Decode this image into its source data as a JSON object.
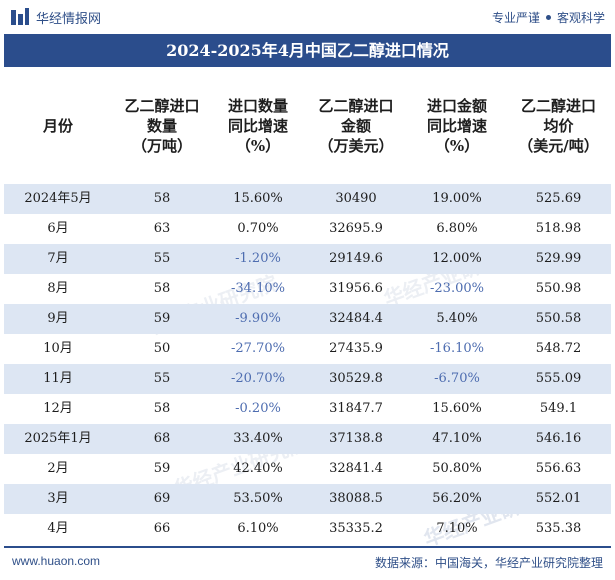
{
  "header": {
    "brand": "华经情报网",
    "slogan_left": "专业严谨",
    "slogan_right": "客观科学"
  },
  "title": "2024-2025年4月中国乙二醇进口情况",
  "columns": [
    "月份",
    "乙二醇进口\n数量\n（万吨）",
    "进口数量\n同比增速\n（%）",
    "乙二醇进口\n金额\n（万美元）",
    "进口金额\n同比增速\n（%）",
    "乙二醇进口\n均价\n（美元/吨）"
  ],
  "rows": [
    [
      "2024年5月",
      "58",
      "15.60%",
      "30490",
      "19.00%",
      "525.69"
    ],
    [
      "6月",
      "63",
      "0.70%",
      "32695.9",
      "6.80%",
      "518.98"
    ],
    [
      "7月",
      "55",
      "-1.20%",
      "29149.6",
      "12.00%",
      "529.99"
    ],
    [
      "8月",
      "58",
      "-34.10%",
      "31956.6",
      "-23.00%",
      "550.98"
    ],
    [
      "9月",
      "59",
      "-9.90%",
      "32484.4",
      "5.40%",
      "550.58"
    ],
    [
      "10月",
      "50",
      "-27.70%",
      "27435.9",
      "-16.10%",
      "548.72"
    ],
    [
      "11月",
      "55",
      "-20.70%",
      "30529.8",
      "-6.70%",
      "555.09"
    ],
    [
      "12月",
      "58",
      "-0.20%",
      "31847.7",
      "15.60%",
      "549.1"
    ],
    [
      "2025年1月",
      "68",
      "33.40%",
      "37138.8",
      "47.10%",
      "546.16"
    ],
    [
      "2月",
      "59",
      "42.40%",
      "32841.4",
      "50.80%",
      "556.63"
    ],
    [
      "3月",
      "69",
      "53.50%",
      "38088.5",
      "56.20%",
      "552.01"
    ],
    [
      "4月",
      "66",
      "6.10%",
      "35335.2",
      "7.10%",
      "535.38"
    ]
  ],
  "footer": {
    "website": "www.huaon.com",
    "source": "数据来源：中国海关，华经产业研究院整理"
  },
  "watermark": "华经产业研究院",
  "colors": {
    "title_bg": "#2b4d8c",
    "alt_row": "#dde6f3",
    "negative_text": "#4e6db0",
    "brand_text": "#2f4f88"
  }
}
